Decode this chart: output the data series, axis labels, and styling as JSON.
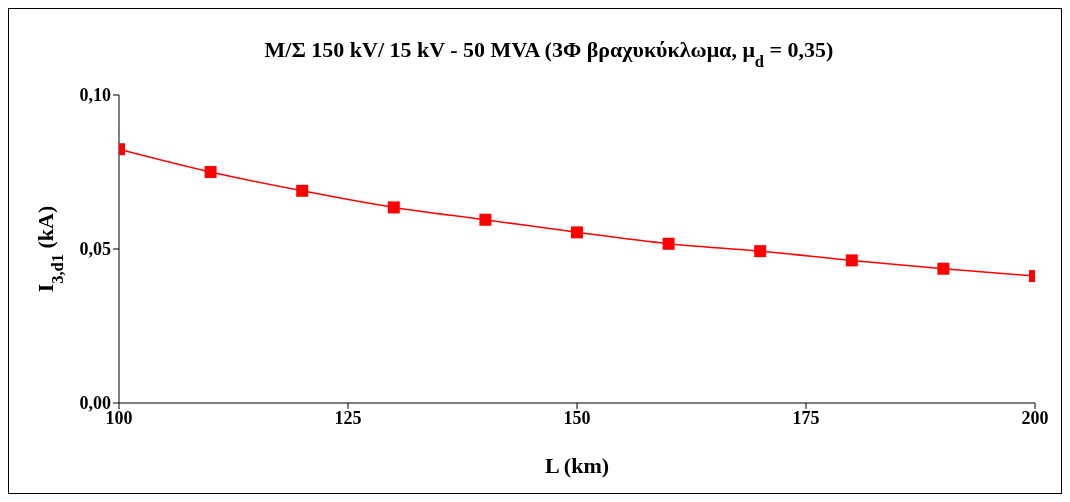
{
  "chart_data": {
    "type": "line",
    "title": "M/Σ 150 kV/ 15 kV - 50 MVA (3Φ βραχυκύκλωμα, μ$_{d}$ = 0,35)",
    "xlabel": "L (km)",
    "ylabel": "I$_{3,d1}$ (kA)",
    "x": [
      100,
      110,
      120,
      130,
      140,
      150,
      160,
      170,
      180,
      190,
      200
    ],
    "series": [
      {
        "color": "#ff0000",
        "values": [
          0.0824,
          0.075,
          0.0689,
          0.0635,
          0.0595,
          0.0554,
          0.0517,
          0.0493,
          0.0463,
          0.0436,
          0.0412
        ]
      }
    ],
    "xlim": [
      100,
      200
    ],
    "xticks": [
      100,
      125,
      150,
      175,
      200
    ],
    "ylim": [
      0,
      0.1
    ],
    "yticks": [
      {
        "value": 0,
        "label": "0,00"
      },
      {
        "value": 0.05,
        "label": "0,05"
      },
      {
        "value": 0.1,
        "label": "0,10"
      }
    ],
    "grid": false,
    "legend": false,
    "marker": "square",
    "line_style": "solid"
  }
}
